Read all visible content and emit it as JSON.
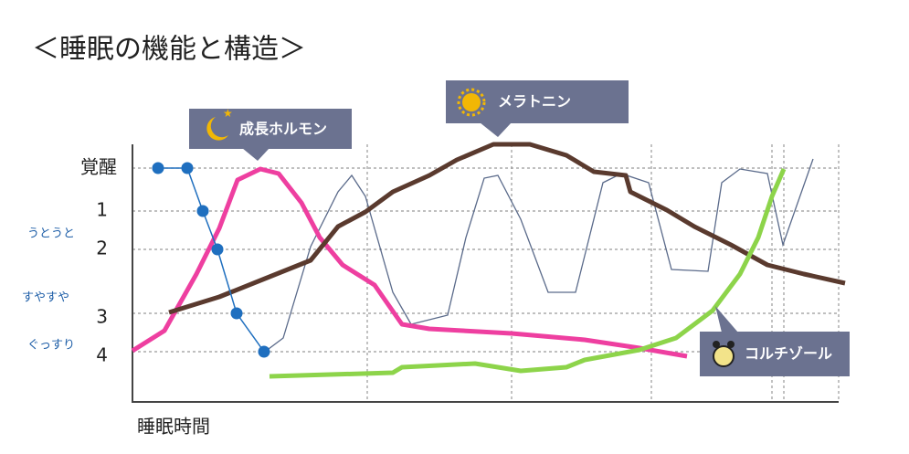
{
  "header": {
    "title": "＜睡眠の機能と構造＞"
  },
  "axis": {
    "y_labels": [
      "覚醒",
      "1",
      "2",
      "3",
      "4"
    ],
    "stage_labels": [
      "うとうと",
      "すやすや",
      "ぐっすり"
    ],
    "x_label": "睡眠時間"
  },
  "callouts": [
    {
      "label": "成長ホルモン"
    },
    {
      "label": "メラトニン"
    },
    {
      "label": "コルチゾール"
    }
  ]
}
